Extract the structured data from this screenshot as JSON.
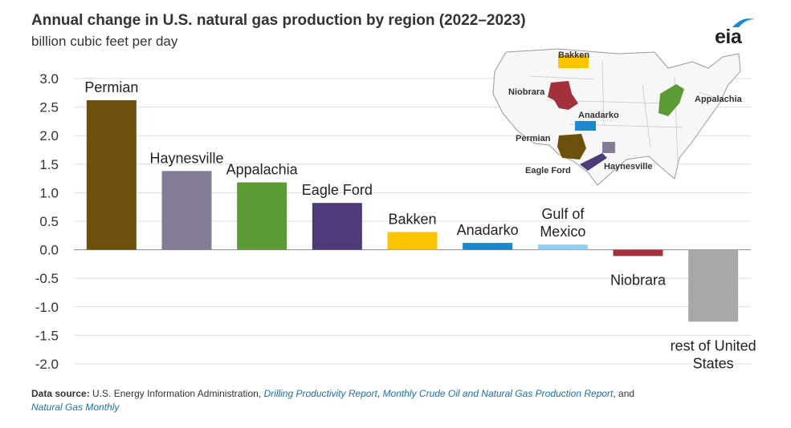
{
  "header": {
    "title": "Annual change in U.S. natural gas production by region (2022–2023)",
    "subtitle": "billion cubic feet per day",
    "logo_text": "eia"
  },
  "chart_data": {
    "type": "bar",
    "title": "Annual change in U.S. natural gas production by region (2022–2023)",
    "ylabel": "billion cubic feet per day",
    "xlabel": "",
    "ylim": [
      -2.0,
      3.0
    ],
    "yticks": [
      "3.0",
      "2.5",
      "2.0",
      "1.5",
      "1.0",
      "0.5",
      "0.0",
      "-0.5",
      "-1.0",
      "-1.5",
      "-2.0"
    ],
    "grid": true,
    "categories": [
      [
        "Permian"
      ],
      [
        "Haynesville"
      ],
      [
        "Appalachia"
      ],
      [
        "Eagle Ford"
      ],
      [
        "Bakken"
      ],
      [
        "Anadarko"
      ],
      [
        "Gulf of",
        "Mexico"
      ],
      [
        "Niobrara"
      ],
      [
        "rest of United",
        "States"
      ]
    ],
    "values": [
      2.62,
      1.38,
      1.18,
      0.82,
      0.31,
      0.12,
      0.09,
      -0.11,
      -1.26
    ],
    "colors": [
      "#6b4f0a",
      "#857c96",
      "#5c9a33",
      "#4d3a79",
      "#fcc500",
      "#1b88d0",
      "#8ed0f4",
      "#a3313c",
      "#a8a8a8"
    ]
  },
  "map": {
    "labels": [
      {
        "text": "Bakken",
        "color": "#e0a800"
      },
      {
        "text": "Niobrara",
        "color": "#a3313c"
      },
      {
        "text": "Anadarko",
        "color": "#1b88d0"
      },
      {
        "text": "Appalachia",
        "color": "#5c9a33"
      },
      {
        "text": "Permian",
        "color": "#6b4f0a"
      },
      {
        "text": "Haynesville",
        "color": "#857c96"
      },
      {
        "text": "Eagle Ford",
        "color": "#4d3a79"
      }
    ]
  },
  "source": {
    "label": "Data source:",
    "text1": "U.S. Energy Information Administration,",
    "link1": "Drilling Productivity Report",
    "sep1": ",",
    "link2": "Monthly Crude Oil and Natural Gas Production Report",
    "text2": ", and",
    "link3": "Natural Gas Monthly"
  }
}
